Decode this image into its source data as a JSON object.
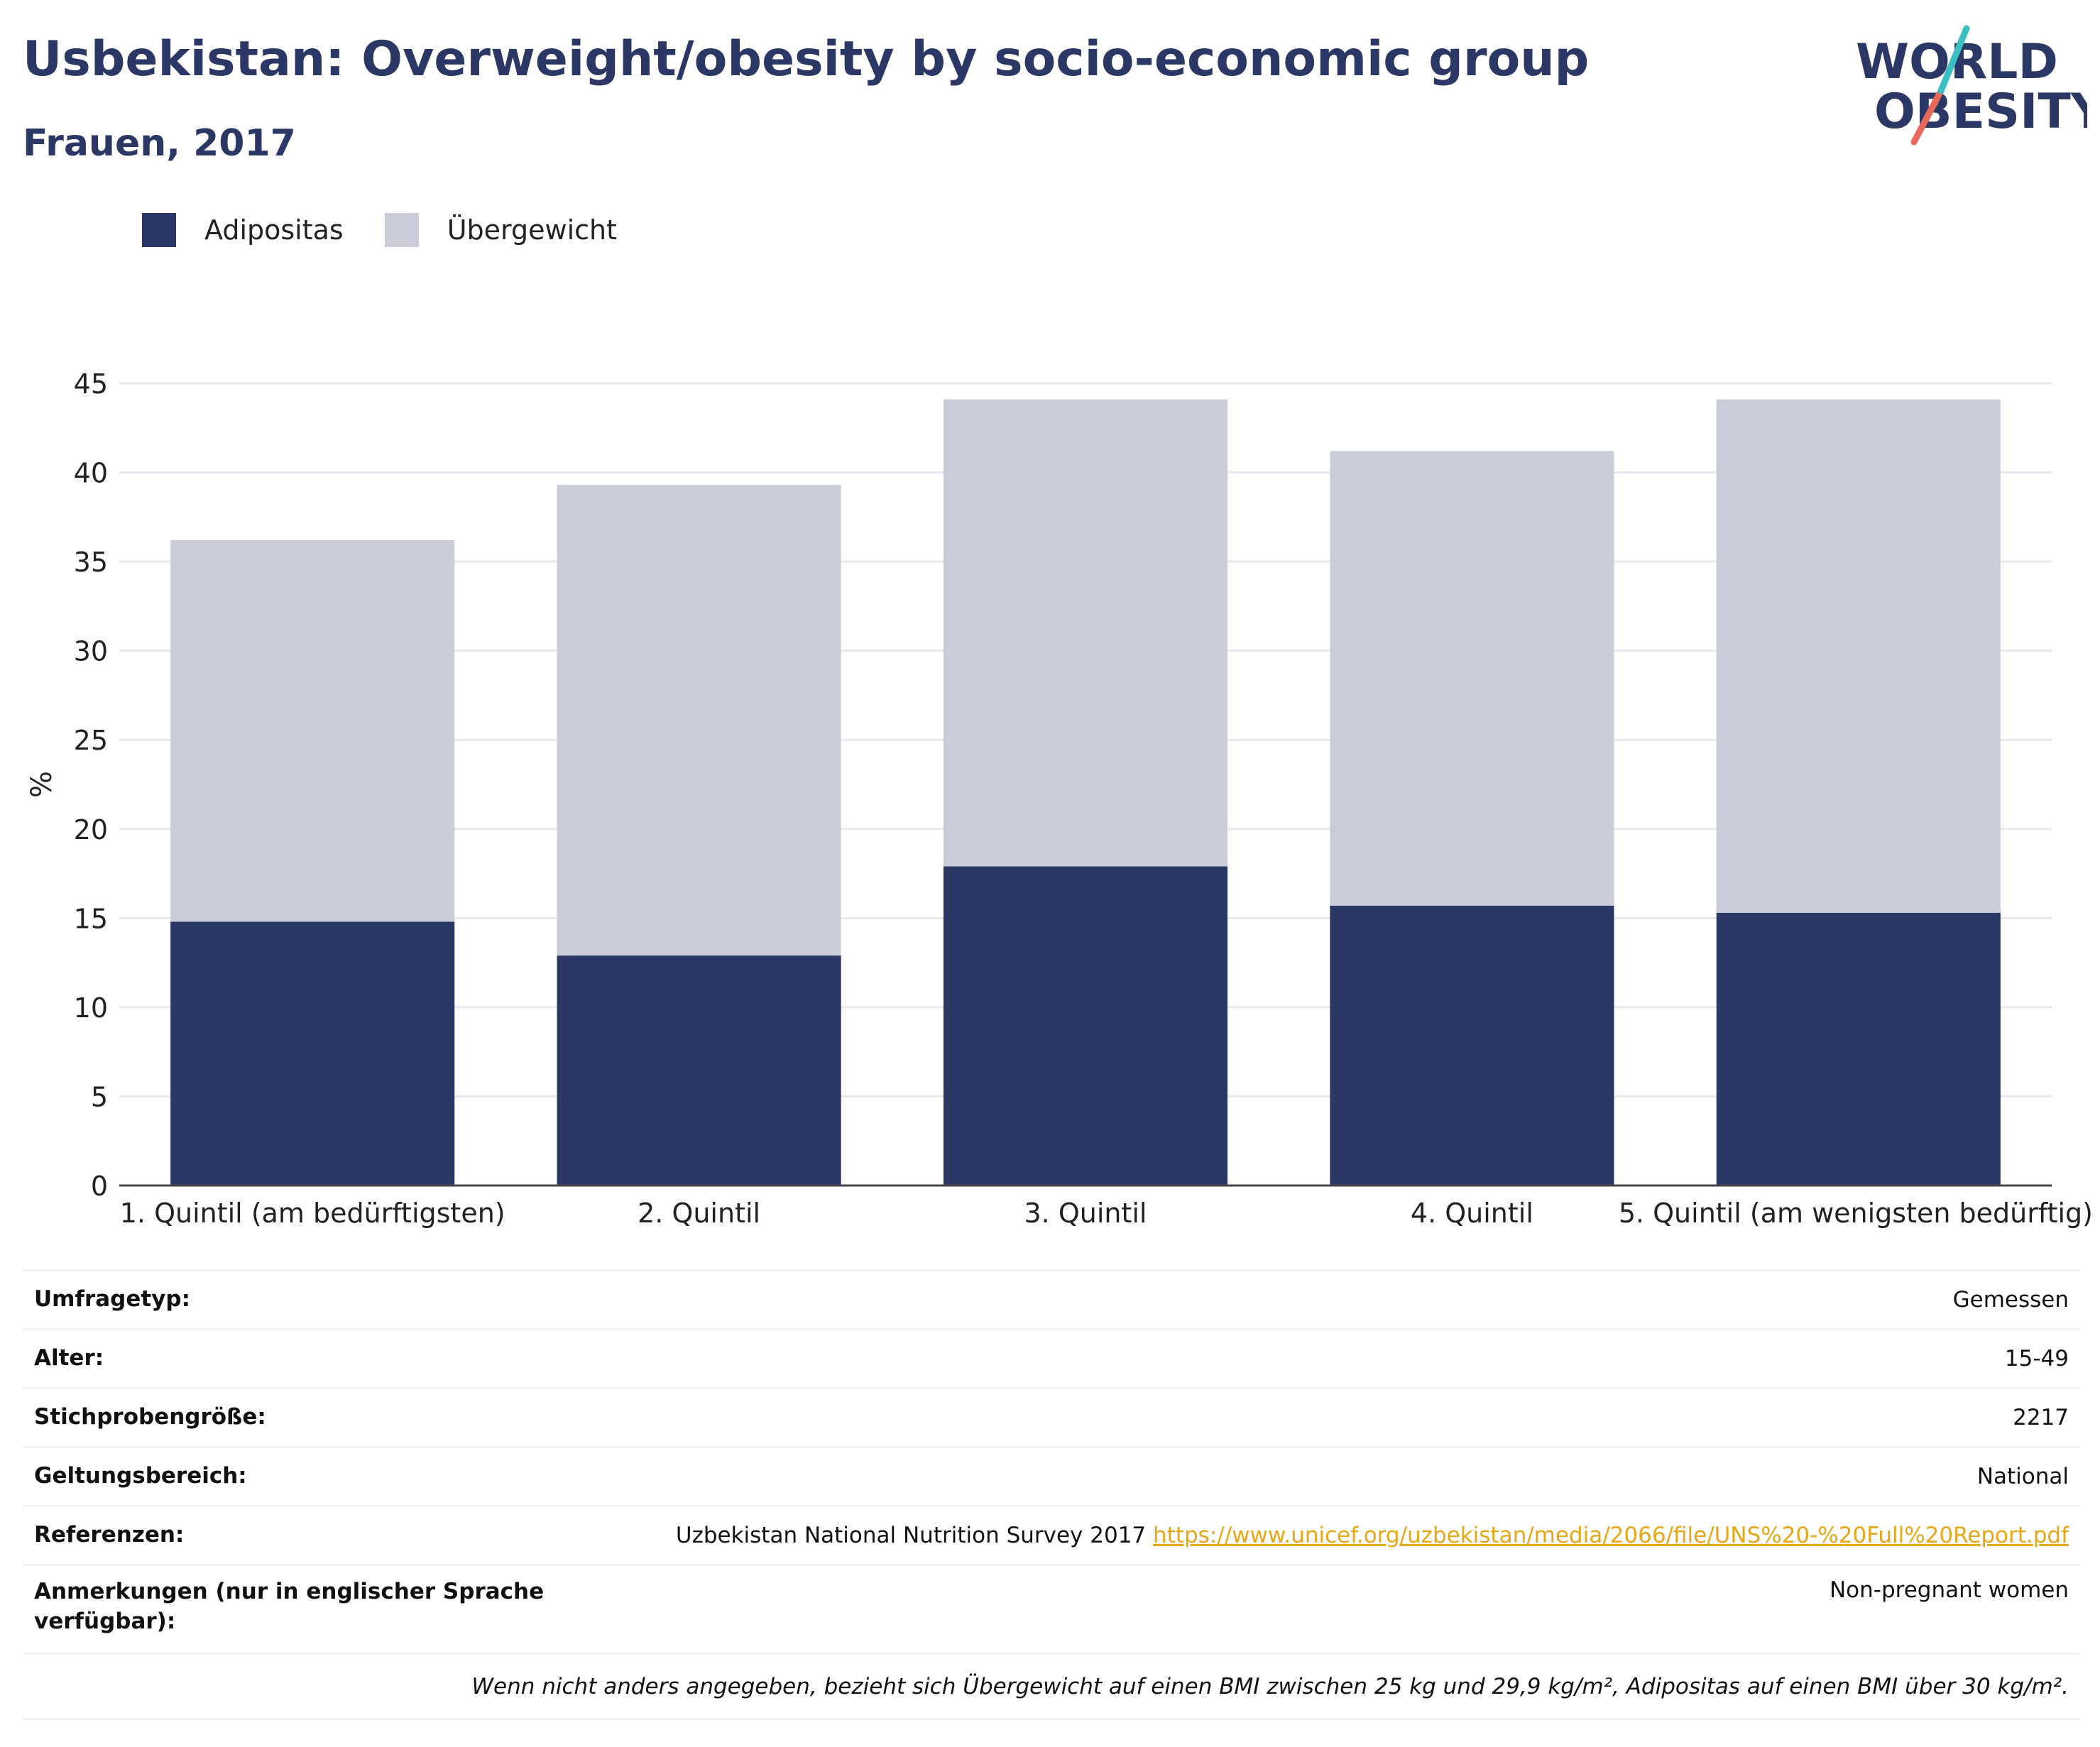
{
  "title": "Usbekistan: Overweight/obesity by socio-economic group",
  "subtitle": "Frauen, 2017",
  "logo": {
    "line1": "WORLD",
    "line2": "OBESITY"
  },
  "colors": {
    "obesity": "#2b3764",
    "overweight": "#cacdd9",
    "accent_teal": "#3bbfc1",
    "accent_red": "#e8685a",
    "link": "#e6a817"
  },
  "legend": [
    {
      "label": "Adipositas",
      "color": "#2b3764"
    },
    {
      "label": "Übergewicht",
      "color": "#cacdd9"
    }
  ],
  "chart_data": {
    "type": "bar",
    "stacked": true,
    "categories": [
      "1. Quintil (am bedürftigsten)",
      "2. Quintil",
      "3. Quintil",
      "4. Quintil",
      "5. Quintil (am wenigsten bedürftig)"
    ],
    "series": [
      {
        "name": "Adipositas",
        "values": [
          14.8,
          12.9,
          17.9,
          15.7,
          15.3
        ]
      },
      {
        "name": "Übergewicht",
        "values": [
          21.4,
          26.4,
          26.2,
          25.5,
          28.8
        ]
      }
    ],
    "ylabel": "%",
    "xlabel": "",
    "ylim": [
      0,
      45
    ],
    "yticks": [
      0,
      5,
      10,
      15,
      20,
      25,
      30,
      35,
      40,
      45
    ],
    "grid": true,
    "legend_position": "top-left"
  },
  "meta": [
    {
      "label": "Umfragetyp:",
      "value": "Gemessen"
    },
    {
      "label": "Alter:",
      "value": "15-49"
    },
    {
      "label": "Stichprobengröße:",
      "value": "2217"
    },
    {
      "label": "Geltungsbereich:",
      "value": "National"
    },
    {
      "label": "Referenzen:",
      "value": "Uzbekistan National Nutrition Survey 2017",
      "link": "https://www.unicef.org/uzbekistan/media/2066/file/UNS%20-%20Full%20Report.pdf"
    },
    {
      "label": "Anmerkungen (nur in englischer Sprache verfügbar):",
      "value": "Non-pregnant women"
    }
  ],
  "footnote": "Wenn nicht anders angegeben, bezieht sich Übergewicht auf einen BMI zwischen 25 kg und 29,9 kg/m², Adipositas auf einen BMI über 30 kg/m²."
}
